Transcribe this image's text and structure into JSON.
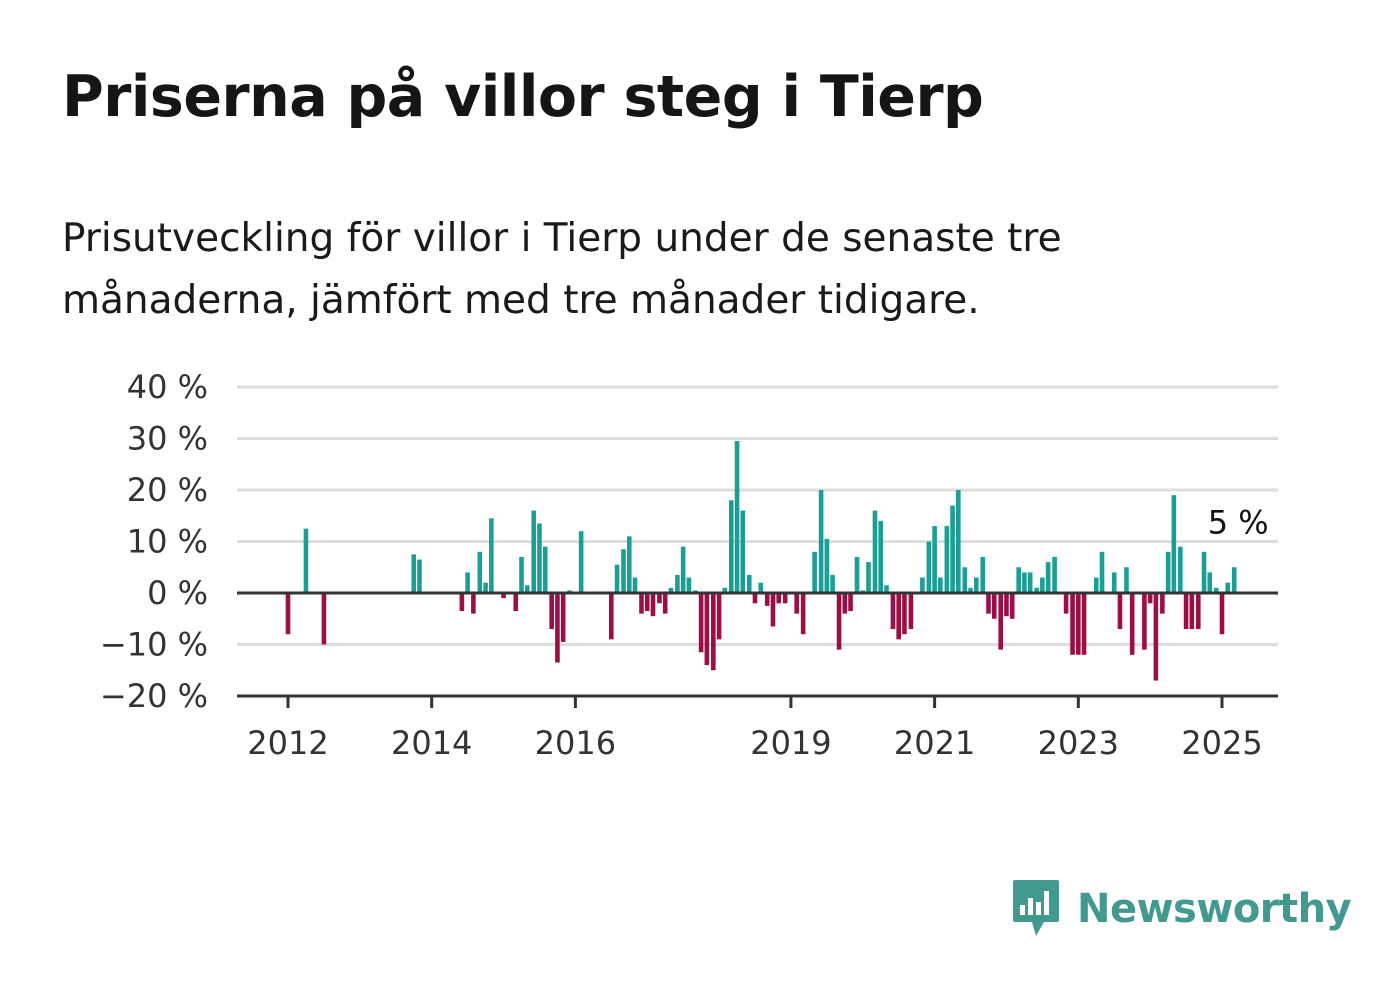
{
  "title": "Priserna på villor steg i Tierp",
  "subtitle": "Prisutveckling för villor i Tierp under de senaste tre månaderna, jämfört med tre månader tidigare.",
  "brand": {
    "name": "Newsworthy",
    "icon": "newsworthy-logo-icon"
  },
  "colors": {
    "positive": "#1a9e95",
    "negative": "#9c0e45",
    "grid": "#dddddd",
    "axis": "#333333",
    "brand": "#42998f"
  },
  "chart_data": {
    "type": "bar",
    "title": "Priserna på villor steg i Tierp",
    "subtitle": "Prisutveckling för villor i Tierp under de senaste tre månaderna, jämfört med tre månader tidigare.",
    "ylim": [
      -20,
      40
    ],
    "y_ticks": [
      {
        "value": 40,
        "label": "40 %"
      },
      {
        "value": 30,
        "label": "30 %"
      },
      {
        "value": 20,
        "label": "20 %"
      },
      {
        "value": 10,
        "label": "10 %"
      },
      {
        "value": 0,
        "label": "0 %"
      },
      {
        "value": -10,
        "label": "−10 %"
      },
      {
        "value": -20,
        "label": "−20 %"
      }
    ],
    "x_ticks": [
      {
        "value": 2012,
        "label": "2012"
      },
      {
        "value": 2014,
        "label": "2014"
      },
      {
        "value": 2016,
        "label": "2016"
      },
      {
        "value": 2019,
        "label": "2019"
      },
      {
        "value": 2021,
        "label": "2021"
      },
      {
        "value": 2023,
        "label": "2023"
      },
      {
        "value": 2025,
        "label": "2025"
      }
    ],
    "grid": true,
    "last_value_label": "5 %",
    "series": [
      {
        "values": [
          [
            2012.0,
            -8
          ],
          [
            2012.25,
            12.5
          ],
          [
            2012.5,
            -10
          ],
          [
            2013.75,
            7.5
          ],
          [
            2013.83,
            6.5
          ],
          [
            2014.42,
            -3.5
          ],
          [
            2014.5,
            4
          ],
          [
            2014.58,
            -4
          ],
          [
            2014.67,
            8
          ],
          [
            2014.75,
            2
          ],
          [
            2014.83,
            14.5
          ],
          [
            2015.0,
            -1
          ],
          [
            2015.17,
            -3.5
          ],
          [
            2015.25,
            7
          ],
          [
            2015.33,
            1.5
          ],
          [
            2015.42,
            16
          ],
          [
            2015.5,
            13.5
          ],
          [
            2015.58,
            9
          ],
          [
            2015.67,
            -7
          ],
          [
            2015.75,
            -13.5
          ],
          [
            2015.83,
            -9.5
          ],
          [
            2015.92,
            0.5
          ],
          [
            2016.08,
            12
          ],
          [
            2016.5,
            -9
          ],
          [
            2016.58,
            5.5
          ],
          [
            2016.67,
            8.5
          ],
          [
            2016.75,
            11
          ],
          [
            2016.83,
            3
          ],
          [
            2016.92,
            -4
          ],
          [
            2017.0,
            -3.5
          ],
          [
            2017.08,
            -4.5
          ],
          [
            2017.17,
            -2
          ],
          [
            2017.25,
            -4
          ],
          [
            2017.33,
            1
          ],
          [
            2017.42,
            3.5
          ],
          [
            2017.5,
            9
          ],
          [
            2017.58,
            3
          ],
          [
            2017.67,
            0.5
          ],
          [
            2017.75,
            -11.5
          ],
          [
            2017.83,
            -14
          ],
          [
            2017.92,
            -15
          ],
          [
            2018.0,
            -9
          ],
          [
            2018.08,
            1
          ],
          [
            2018.17,
            18
          ],
          [
            2018.25,
            29.5
          ],
          [
            2018.33,
            16
          ],
          [
            2018.42,
            3.5
          ],
          [
            2018.5,
            -2
          ],
          [
            2018.58,
            2
          ],
          [
            2018.67,
            -2.5
          ],
          [
            2018.75,
            -6.5
          ],
          [
            2018.83,
            -2
          ],
          [
            2018.92,
            -2
          ],
          [
            2019.08,
            -4
          ],
          [
            2019.17,
            -8
          ],
          [
            2019.33,
            8
          ],
          [
            2019.42,
            20
          ],
          [
            2019.5,
            10.5
          ],
          [
            2019.58,
            3.5
          ],
          [
            2019.67,
            -11
          ],
          [
            2019.75,
            -4
          ],
          [
            2019.83,
            -3.5
          ],
          [
            2019.92,
            7
          ],
          [
            2020.0,
            0.5
          ],
          [
            2020.08,
            6
          ],
          [
            2020.17,
            16
          ],
          [
            2020.25,
            14
          ],
          [
            2020.33,
            1.5
          ],
          [
            2020.42,
            -7
          ],
          [
            2020.5,
            -9
          ],
          [
            2020.58,
            -8
          ],
          [
            2020.67,
            -7
          ],
          [
            2020.83,
            3
          ],
          [
            2020.92,
            10
          ],
          [
            2021.0,
            13
          ],
          [
            2021.08,
            3
          ],
          [
            2021.17,
            13
          ],
          [
            2021.25,
            17
          ],
          [
            2021.33,
            20
          ],
          [
            2021.42,
            5
          ],
          [
            2021.5,
            1
          ],
          [
            2021.58,
            3
          ],
          [
            2021.67,
            7
          ],
          [
            2021.75,
            -4
          ],
          [
            2021.83,
            -5
          ],
          [
            2021.92,
            -11
          ],
          [
            2022.0,
            -4.5
          ],
          [
            2022.08,
            -5
          ],
          [
            2022.17,
            5
          ],
          [
            2022.25,
            4
          ],
          [
            2022.33,
            4
          ],
          [
            2022.42,
            1
          ],
          [
            2022.5,
            3
          ],
          [
            2022.58,
            6
          ],
          [
            2022.67,
            7
          ],
          [
            2022.83,
            -4
          ],
          [
            2022.92,
            -12
          ],
          [
            2023.0,
            -12
          ],
          [
            2023.08,
            -12
          ],
          [
            2023.25,
            3
          ],
          [
            2023.33,
            8
          ],
          [
            2023.5,
            4
          ],
          [
            2023.58,
            -7
          ],
          [
            2023.67,
            5
          ],
          [
            2023.75,
            -12
          ],
          [
            2023.92,
            -11
          ],
          [
            2024.0,
            -2
          ],
          [
            2024.08,
            -17
          ],
          [
            2024.17,
            -4
          ],
          [
            2024.25,
            8
          ],
          [
            2024.33,
            19
          ],
          [
            2024.42,
            9
          ],
          [
            2024.5,
            -7
          ],
          [
            2024.58,
            -7
          ],
          [
            2024.67,
            -7
          ],
          [
            2024.75,
            8
          ],
          [
            2024.83,
            4
          ],
          [
            2024.92,
            1
          ],
          [
            2025.0,
            -8
          ],
          [
            2025.08,
            2
          ],
          [
            2025.17,
            5
          ]
        ]
      }
    ]
  }
}
